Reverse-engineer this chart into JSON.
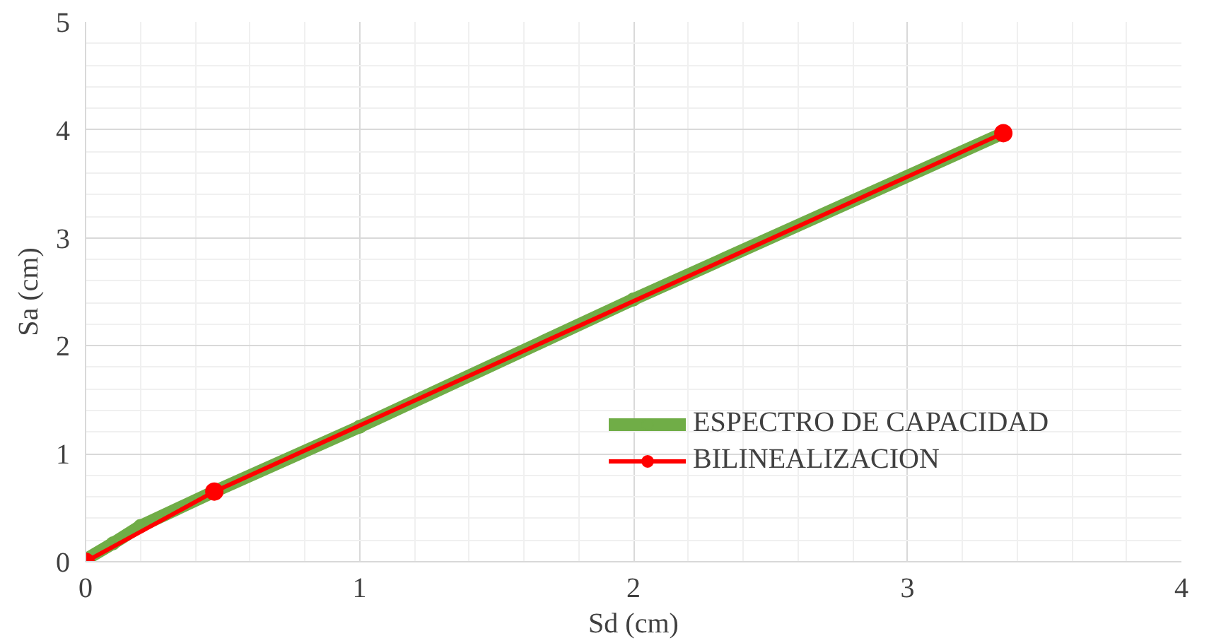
{
  "chart_data": {
    "type": "line",
    "xlabel": "Sd (cm)",
    "ylabel": "Sa (cm)",
    "xlim": [
      0,
      4
    ],
    "ylim": [
      0,
      5
    ],
    "xticks": [
      0,
      1,
      2,
      3,
      4
    ],
    "yticks": [
      0,
      1,
      2,
      3,
      4,
      5
    ],
    "grid": true,
    "legend": "right",
    "marker": "circle",
    "series": [
      {
        "name": "ESPECTRO DE CAPACIDAD",
        "color": "#70ad47",
        "x": [
          0,
          0.1,
          0.2,
          0.47,
          1,
          2,
          3.35
        ],
        "values": [
          0.02,
          0.17,
          0.33,
          0.65,
          1.25,
          2.43,
          3.97
        ]
      },
      {
        "name": "BILINEALIZACION",
        "color": "#ff0000",
        "x": [
          0,
          0.47,
          3.35
        ],
        "values": [
          0,
          0.65,
          3.97
        ]
      }
    ]
  }
}
